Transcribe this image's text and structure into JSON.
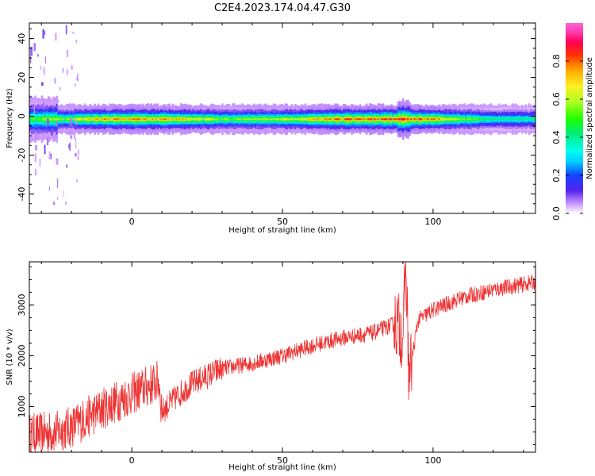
{
  "chart_data": [
    {
      "type": "heatmap",
      "title": "C2E4.2023.174.04.47.G30",
      "xlabel": "Height of straight line (km)",
      "ylabel": "Frequency (Hz)",
      "xlim": [
        -34,
        134
      ],
      "ylim": [
        -50,
        48
      ],
      "xticks": [
        "0",
        "50",
        "100"
      ],
      "yticks": [
        "40",
        "20",
        "0",
        "-20",
        "-40"
      ],
      "colorbar": {
        "label": "Normalized spectral amplitude",
        "range": [
          0,
          1
        ],
        "ticks": [
          "0.0",
          "0.2",
          "0.4",
          "0.6",
          "0.8"
        ],
        "colormap": "gist_ncar-like (white-purple-blue-cyan-green-yellow-red-magenta)"
      },
      "band": {
        "center_hz": -1.5,
        "peak_amplitude_by_height": [
          {
            "x": -33,
            "amp": 0.55
          },
          {
            "x": -25,
            "amp": 0.6
          },
          {
            "x": -20,
            "amp": 0.65
          },
          {
            "x": -10,
            "amp": 0.8
          },
          {
            "x": 0,
            "amp": 0.82
          },
          {
            "x": 10,
            "amp": 0.8
          },
          {
            "x": 20,
            "amp": 0.72
          },
          {
            "x": 30,
            "amp": 0.6
          },
          {
            "x": 40,
            "amp": 0.6
          },
          {
            "x": 50,
            "amp": 0.65
          },
          {
            "x": 60,
            "amp": 0.75
          },
          {
            "x": 70,
            "amp": 0.85
          },
          {
            "x": 80,
            "amp": 0.9
          },
          {
            "x": 90,
            "amp": 0.88
          },
          {
            "x": 100,
            "amp": 0.85
          },
          {
            "x": 105,
            "amp": 0.7
          },
          {
            "x": 110,
            "amp": 0.6
          },
          {
            "x": 120,
            "amp": 0.45
          },
          {
            "x": 134,
            "amp": 0.45
          }
        ]
      }
    },
    {
      "type": "line",
      "xlabel": "Height of straight line (km)",
      "ylabel": "SNR (10 * v/v)",
      "xlim": [
        -34,
        134
      ],
      "ylim": [
        100,
        3850
      ],
      "xticks": [
        "0",
        "50",
        "100"
      ],
      "yticks": [
        "1000",
        "2000",
        "3000"
      ],
      "color": "#ee3333",
      "series": [
        {
          "values_trend": [
            {
              "x": -34,
              "y": 450
            },
            {
              "x": -25,
              "y": 500
            },
            {
              "x": -20,
              "y": 600
            },
            {
              "x": -10,
              "y": 950
            },
            {
              "x": 0,
              "y": 1250
            },
            {
              "x": 9,
              "y": 1500
            },
            {
              "x": 10,
              "y": 900
            },
            {
              "x": 15,
              "y": 1200
            },
            {
              "x": 20,
              "y": 1450
            },
            {
              "x": 30,
              "y": 1750
            },
            {
              "x": 40,
              "y": 1850
            },
            {
              "x": 50,
              "y": 2000
            },
            {
              "x": 60,
              "y": 2200
            },
            {
              "x": 70,
              "y": 2350
            },
            {
              "x": 80,
              "y": 2450
            },
            {
              "x": 88,
              "y": 2650
            },
            {
              "x": 90,
              "y": 2400
            },
            {
              "x": 91,
              "y": 3800
            },
            {
              "x": 92,
              "y": 1550
            },
            {
              "x": 95,
              "y": 2700
            },
            {
              "x": 100,
              "y": 2900
            },
            {
              "x": 110,
              "y": 3150
            },
            {
              "x": 120,
              "y": 3300
            },
            {
              "x": 134,
              "y": 3450
            }
          ]
        }
      ]
    }
  ]
}
